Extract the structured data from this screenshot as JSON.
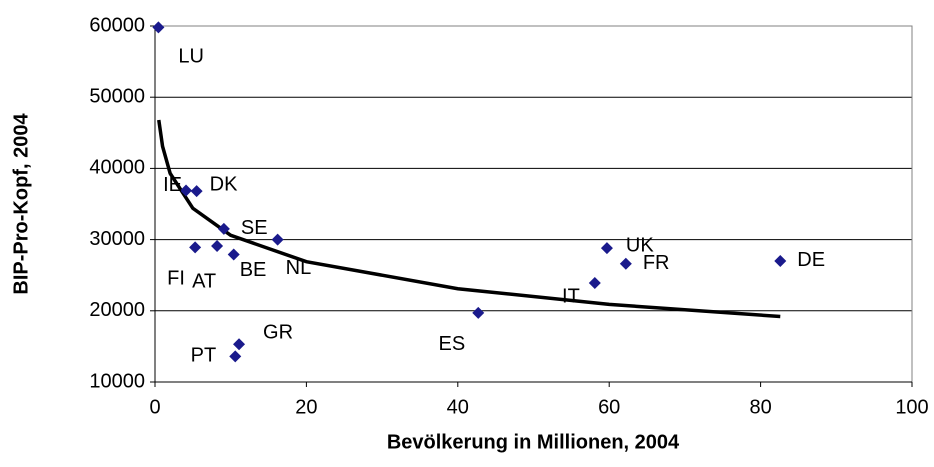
{
  "chart_data": {
    "type": "scatter",
    "xlabel": "Bevölkerung in Millionen, 2004",
    "ylabel": "BIP-Pro-Kopf, 2004",
    "labels": [
      "LU",
      "IE",
      "DK",
      "FI",
      "AT",
      "SE",
      "BE",
      "NL",
      "GR",
      "PT",
      "ES",
      "IT",
      "UK",
      "FR",
      "DE"
    ],
    "x": [
      0.45,
      4.1,
      5.5,
      5.3,
      8.2,
      9.1,
      10.4,
      16.2,
      11.1,
      10.6,
      42.7,
      58.1,
      59.7,
      62.2,
      82.6
    ],
    "values": [
      59800,
      36900,
      36800,
      28900,
      29100,
      31500,
      27900,
      30000,
      15300,
      13600,
      19700,
      23900,
      28800,
      26600,
      27000
    ],
    "color": "#1a1a8c",
    "trendline": {
      "x": [
        0.5,
        1,
        2,
        5,
        10,
        20,
        40,
        60,
        82.6
      ],
      "values": [
        46800,
        43100,
        39300,
        34400,
        30600,
        26900,
        23100,
        20900,
        19200
      ],
      "color": "#000000"
    },
    "xlim": [
      0,
      100
    ],
    "xticks": [
      0,
      20,
      40,
      60,
      80,
      100
    ],
    "ylim": [
      10000,
      60000
    ],
    "yticks": [
      10000,
      20000,
      30000,
      40000,
      50000,
      60000
    ],
    "grid": true
  }
}
